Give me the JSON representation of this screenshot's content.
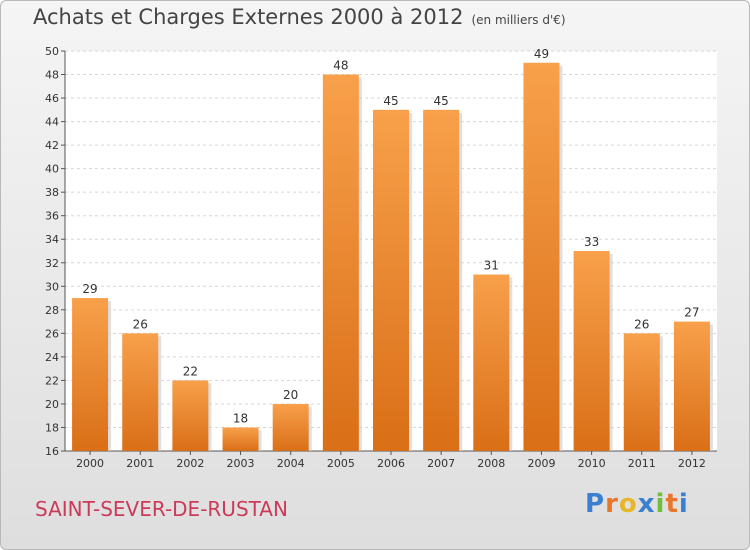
{
  "header": {
    "title": "Achats et Charges Externes 2000 à 2012",
    "unit": "(en milliers d'€)"
  },
  "footer": {
    "commune": "SAINT-SEVER-DE-RUSTAN",
    "brand": "Proxiti"
  },
  "colors": {
    "bar_light": "#f8a04b",
    "bar_dark": "#d96f17",
    "commune": "#cc3a5a"
  },
  "chart_data": {
    "type": "bar",
    "title": "Achats et Charges Externes 2000 à 2012",
    "subtitle": "(en milliers d'€)",
    "categories": [
      "2000",
      "2001",
      "2002",
      "2003",
      "2004",
      "2005",
      "2006",
      "2007",
      "2008",
      "2009",
      "2010",
      "2011",
      "2012"
    ],
    "values": [
      29,
      26,
      22,
      18,
      20,
      48,
      45,
      45,
      31,
      49,
      33,
      26,
      27
    ],
    "ylim": [
      16,
      50
    ],
    "yticks": [
      16,
      18,
      20,
      22,
      24,
      26,
      28,
      30,
      32,
      34,
      36,
      38,
      40,
      42,
      44,
      46,
      48,
      50
    ],
    "grid": true,
    "xlabel": "",
    "ylabel": ""
  }
}
